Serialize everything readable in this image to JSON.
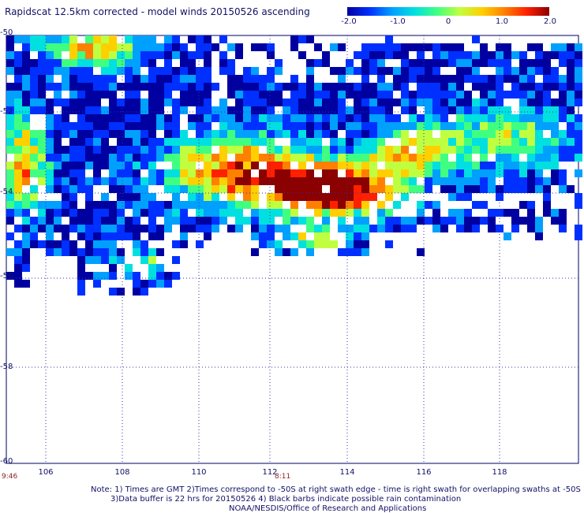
{
  "header": {
    "title": "Rapidscat 12.5km corrected - model winds 20150526 ascending"
  },
  "colorbar": {
    "ticks": [
      "-2.0",
      "-1.0",
      "0",
      "1.0",
      "2.0"
    ],
    "tick_values": [
      -2.0,
      -1.0,
      0.0,
      1.0,
      2.0
    ],
    "colors": [
      "#0000a0",
      "#0030ff",
      "#00a0ff",
      "#00e0e0",
      "#40ff80",
      "#c0ff40",
      "#ffd000",
      "#ff8000",
      "#ff2000",
      "#8b0000"
    ]
  },
  "map": {
    "lon_range": [
      105,
      120
    ],
    "lat_range": [
      -60,
      -50
    ],
    "lon_ticks": [
      "106",
      "108",
      "110",
      "112",
      "114",
      "116",
      "118"
    ],
    "lat_ticks": [
      "-50",
      "-52",
      "-54",
      "-56",
      "-58",
      "-60"
    ],
    "time_labels": [
      "9:46",
      "8:11"
    ],
    "grid": "dotted"
  },
  "footer": {
    "note_line1": "Note: 1) Times are GMT 2)Times correspond to -50S at right swath edge - time is right swath for overlapping swaths at -50S",
    "note_line2": "3)Data buffer is 22 hrs for 20150526 4) Black barbs indicate possible rain contamination",
    "note_line3": "NOAA/NESDIS/Office of Research and Applications"
  }
}
